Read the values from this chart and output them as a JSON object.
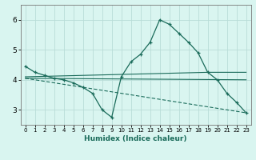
{
  "xlabel": "Humidex (Indice chaleur)",
  "bg_color": "#d9f5f0",
  "grid_color": "#b8ddd8",
  "line_color": "#1a6b5a",
  "xlim": [
    -0.5,
    23.5
  ],
  "ylim": [
    2.5,
    6.5
  ],
  "yticks": [
    3,
    4,
    5,
    6
  ],
  "xticks": [
    0,
    1,
    2,
    3,
    4,
    5,
    6,
    7,
    8,
    9,
    10,
    11,
    12,
    13,
    14,
    15,
    16,
    17,
    18,
    19,
    20,
    21,
    22,
    23
  ],
  "line1_x": [
    0,
    1,
    2,
    3,
    4,
    5,
    6,
    7,
    8,
    9,
    10,
    11,
    12,
    13,
    14,
    15,
    16,
    17,
    18,
    19,
    20,
    21,
    22,
    23
  ],
  "line1_y": [
    4.45,
    4.25,
    4.15,
    4.05,
    4.0,
    3.9,
    3.75,
    3.55,
    3.0,
    2.75,
    4.1,
    4.6,
    4.85,
    5.25,
    6.0,
    5.85,
    5.55,
    5.25,
    4.9,
    4.25,
    4.0,
    3.55,
    3.25,
    2.9
  ],
  "line2_x": [
    0,
    19,
    23
  ],
  "line2_y": [
    4.1,
    4.25,
    4.25
  ],
  "line3_x": [
    0,
    23
  ],
  "line3_y": [
    4.05,
    4.0
  ],
  "line4_x": [
    0,
    23
  ],
  "line4_y": [
    4.05,
    2.9
  ]
}
